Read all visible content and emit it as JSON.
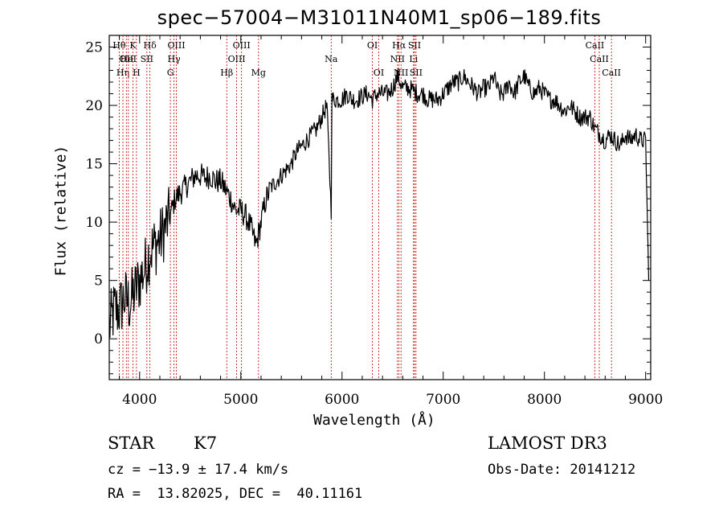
{
  "chart_data": {
    "type": "line",
    "title": "spec−57004−M31011N40M1_sp06−189.fits",
    "xlabel": "Wavelength (Å)",
    "ylabel": "Flux (relative)",
    "xlim": [
      3700,
      9050
    ],
    "ylim": [
      -3.5,
      26
    ],
    "xticks": [
      4000,
      5000,
      6000,
      7000,
      8000,
      9000
    ],
    "yticks": [
      0,
      5,
      10,
      15,
      20,
      25
    ],
    "grid": false,
    "series": [
      {
        "name": "spectrum",
        "x": [
          3700,
          3750,
          3800,
          3850,
          3900,
          3950,
          4000,
          4050,
          4100,
          4150,
          4200,
          4250,
          4300,
          4350,
          4400,
          4450,
          4500,
          4550,
          4600,
          4650,
          4700,
          4750,
          4800,
          4850,
          4900,
          4950,
          5000,
          5050,
          5100,
          5150,
          5200,
          5250,
          5300,
          5350,
          5400,
          5450,
          5500,
          5550,
          5600,
          5650,
          5700,
          5750,
          5800,
          5850,
          5893,
          5900,
          5950,
          6000,
          6050,
          6100,
          6150,
          6200,
          6250,
          6300,
          6350,
          6400,
          6450,
          6500,
          6550,
          6600,
          6650,
          6700,
          6750,
          6800,
          6850,
          6900,
          6950,
          7000,
          7050,
          7100,
          7150,
          7200,
          7250,
          7300,
          7350,
          7400,
          7450,
          7500,
          7550,
          7600,
          7650,
          7700,
          7750,
          7800,
          7850,
          7900,
          7950,
          8000,
          8050,
          8100,
          8150,
          8200,
          8250,
          8300,
          8350,
          8400,
          8450,
          8500,
          8550,
          8600,
          8650,
          8700,
          8750,
          8800,
          8850,
          8900,
          8950,
          9000,
          9030
        ],
        "y": [
          1.0,
          2.5,
          2.5,
          3.5,
          3.0,
          4.0,
          5.0,
          6.0,
          7.5,
          8.0,
          8.5,
          9.5,
          10.5,
          12.0,
          12.5,
          13.0,
          13.5,
          14.0,
          14.0,
          13.8,
          14.0,
          13.5,
          13.5,
          12.8,
          12.0,
          11.0,
          11.0,
          10.5,
          9.5,
          8.0,
          10.0,
          12.0,
          13.0,
          13.5,
          14.0,
          14.5,
          15.0,
          16.0,
          16.5,
          17.0,
          17.5,
          18.0,
          19.0,
          20.0,
          11.0,
          20.5,
          20.5,
          20.5,
          21.0,
          20.5,
          20.5,
          20.8,
          21.0,
          20.5,
          21.0,
          21.0,
          21.0,
          21.5,
          22.5,
          21.5,
          21.5,
          21.3,
          21.0,
          21.0,
          20.5,
          20.5,
          20.5,
          21.0,
          21.5,
          22.0,
          22.0,
          22.5,
          22.0,
          21.5,
          21.0,
          21.5,
          21.5,
          22.5,
          21.0,
          21.0,
          22.0,
          21.0,
          22.0,
          22.5,
          21.5,
          21.0,
          21.5,
          21.0,
          20.5,
          20.5,
          20.0,
          19.5,
          20.0,
          19.5,
          19.0,
          19.0,
          19.0,
          18.0,
          17.5,
          17.0,
          17.5,
          17.0,
          16.5,
          17.5,
          17.0,
          17.5,
          17.0,
          17.0,
          5.0
        ]
      }
    ],
    "line_markers": [
      {
        "wl": 3798,
        "label": "Hθ",
        "row": 0
      },
      {
        "wl": 3835,
        "label": "Hη",
        "row": 2
      },
      {
        "wl": 3869,
        "label": "OII",
        "row": 1
      },
      {
        "wl": 3889,
        "label": "HeI",
        "row": 1
      },
      {
        "wl": 3934,
        "label": "K",
        "row": 0
      },
      {
        "wl": 3969,
        "label": "H",
        "row": 2
      },
      {
        "wl": 4072,
        "label": "SII",
        "row": 1
      },
      {
        "wl": 4102,
        "label": "Hδ",
        "row": 0
      },
      {
        "wl": 4304,
        "label": "G",
        "row": 2
      },
      {
        "wl": 4340,
        "label": "Hγ",
        "row": 1
      },
      {
        "wl": 4363,
        "label": "OIII",
        "row": 0
      },
      {
        "wl": 4861,
        "label": "Hβ",
        "row": 2
      },
      {
        "wl": 4959,
        "label": "OIII",
        "row": 1
      },
      {
        "wl": 5007,
        "label": "OIII",
        "row": 0
      },
      {
        "wl": 5175,
        "label": "Mg",
        "row": 2
      },
      {
        "wl": 5893,
        "label": "Na",
        "row": 1
      },
      {
        "wl": 6300,
        "label": "OI",
        "row": 0
      },
      {
        "wl": 6363,
        "label": "OI",
        "row": 2
      },
      {
        "wl": 6548,
        "label": "NII",
        "row": 1
      },
      {
        "wl": 6563,
        "label": "Hα",
        "row": 0
      },
      {
        "wl": 6583,
        "label": "NII",
        "row": 2
      },
      {
        "wl": 6707,
        "label": "Li",
        "row": 1
      },
      {
        "wl": 6716,
        "label": "SII",
        "row": 0
      },
      {
        "wl": 6731,
        "label": "SII",
        "row": 2
      },
      {
        "wl": 8498,
        "label": "CaII",
        "row": 0
      },
      {
        "wl": 8542,
        "label": "CaII",
        "row": 1
      },
      {
        "wl": 8662,
        "label": "CaII",
        "row": 2
      }
    ],
    "marker_color": "#c00000"
  },
  "info": {
    "object_class": "STAR",
    "subclass": "K7",
    "survey": "LAMOST DR3",
    "cz": "cz = −13.9 ± 17.4 km/s",
    "obs_date": "Obs-Date: 20141212",
    "radec": "RA =  13.82025, DEC =  40.11161"
  }
}
